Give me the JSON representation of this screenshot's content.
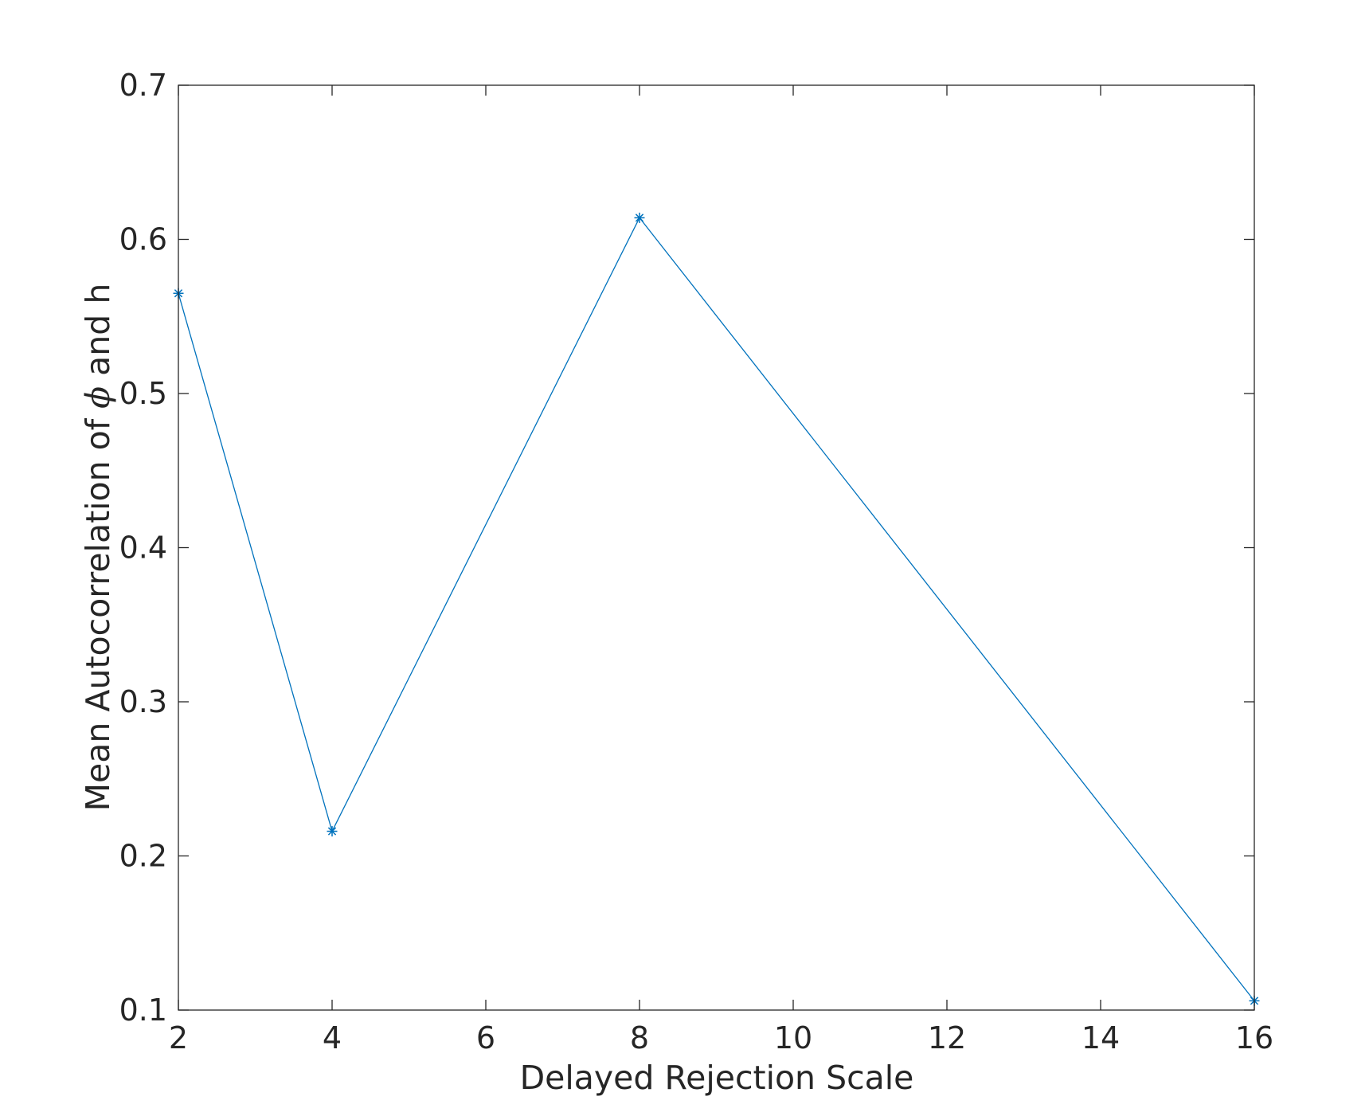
{
  "chart_data": {
    "type": "line",
    "title": "",
    "xlabel": "Delayed Rejection Scale",
    "ylabel": "Mean Autocorrelation of ϕ and h",
    "ylabel_parts": {
      "before": "Mean Autocorrelation of ",
      "symbol": "ϕ",
      "after": " and h"
    },
    "xlim": [
      2,
      16
    ],
    "ylim": [
      0.1,
      0.7
    ],
    "xticks": [
      2,
      4,
      6,
      8,
      10,
      12,
      14,
      16
    ],
    "xtick_labels": [
      "2",
      "4",
      "6",
      "8",
      "10",
      "12",
      "14",
      "16"
    ],
    "yticks": [
      0.1,
      0.2,
      0.3,
      0.4,
      0.5,
      0.6,
      0.7
    ],
    "ytick_labels": [
      "0.1",
      "0.2",
      "0.3",
      "0.4",
      "0.5",
      "0.6",
      "0.7"
    ],
    "grid": false,
    "legend": "none",
    "marker": "asterisk",
    "series": [
      {
        "x": [
          2,
          4,
          8,
          16
        ],
        "y": [
          0.565,
          0.216,
          0.614,
          0.106
        ],
        "color": "#0072BD"
      }
    ],
    "colors": {
      "axis": "#262626",
      "line": "#0072BD"
    }
  }
}
